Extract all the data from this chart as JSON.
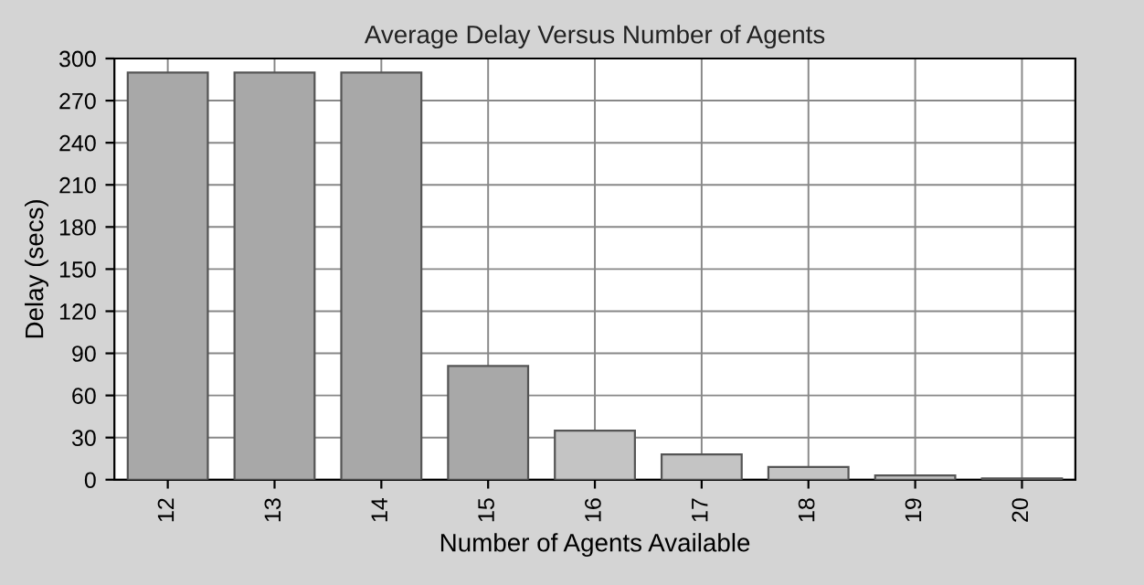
{
  "chart_data": {
    "type": "bar",
    "title": "Average Delay Versus Number of Agents",
    "xlabel": "Number of Agents Available",
    "ylabel": "Delay (secs)",
    "categories": [
      "12",
      "13",
      "14",
      "15",
      "16",
      "17",
      "18",
      "19",
      "20"
    ],
    "values": [
      290,
      290,
      290,
      81,
      35,
      18,
      9,
      3,
      1
    ],
    "colors": [
      "#a8a8a8",
      "#a8a8a8",
      "#a8a8a8",
      "#a8a8a8",
      "#c4c4c4",
      "#c4c4c4",
      "#c4c4c4",
      "#c4c4c4",
      "#c4c4c4"
    ],
    "ylim": [
      0,
      300
    ],
    "yticks": [
      0,
      30,
      60,
      90,
      120,
      150,
      180,
      210,
      240,
      270,
      300
    ],
    "grid": true
  }
}
